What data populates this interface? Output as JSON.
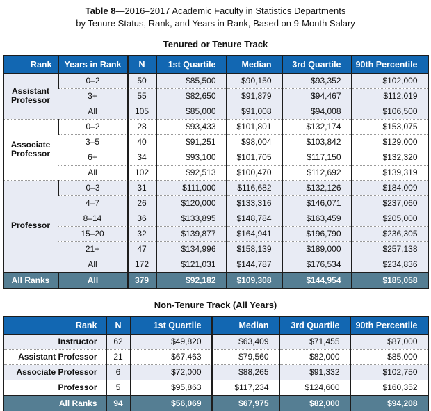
{
  "title": {
    "bold": "Table 8",
    "rest": "—2016–2017 Academic Faculty in Statistics Departments",
    "line2": "by Tenure Status, Rank, and Years in Rank, Based on 9-Month Salary"
  },
  "colors": {
    "header_bg": "#1267b2",
    "header_text": "#ffffff",
    "stripe_bg": "#e8ebf4",
    "total_bg": "#557e93",
    "total_text": "#ffffff",
    "border": "#1d1d1d",
    "dotted_separator": "#9a9a9a"
  },
  "tenured_table": {
    "title": "Tenured or Tenure Track",
    "headers": [
      "Rank",
      "Years in Rank",
      "N",
      "1st Quartile",
      "Median",
      "3rd Quartile",
      "90th Percentile"
    ],
    "groups": [
      {
        "rank": "Assistant Professor",
        "shaded": true,
        "rows": [
          {
            "years": "0–2",
            "n": "50",
            "q1": "$85,500",
            "median": "$90,150",
            "q3": "$93,352",
            "p90": "$102,000"
          },
          {
            "years": "3+",
            "n": "55",
            "q1": "$82,650",
            "median": "$91,879",
            "q3": "$94,467",
            "p90": "$112,019"
          },
          {
            "years": "All",
            "n": "105",
            "q1": "$85,000",
            "median": "$91,008",
            "q3": "$94,008",
            "p90": "$106,500"
          }
        ]
      },
      {
        "rank": "Associate Professor",
        "shaded": false,
        "rows": [
          {
            "years": "0–2",
            "n": "28",
            "q1": "$93,433",
            "median": "$101,801",
            "q3": "$132,174",
            "p90": "$153,075"
          },
          {
            "years": "3–5",
            "n": "40",
            "q1": "$91,251",
            "median": "$98,004",
            "q3": "$103,842",
            "p90": "$129,000"
          },
          {
            "years": "6+",
            "n": "34",
            "q1": "$93,100",
            "median": "$101,705",
            "q3": "$117,150",
            "p90": "$132,320"
          },
          {
            "years": "All",
            "n": "102",
            "q1": "$92,513",
            "median": "$100,470",
            "q3": "$112,692",
            "p90": "$139,319"
          }
        ]
      },
      {
        "rank": "Professor",
        "shaded": true,
        "rows": [
          {
            "years": "0–3",
            "n": "31",
            "q1": "$111,000",
            "median": "$116,682",
            "q3": "$132,126",
            "p90": "$184,009"
          },
          {
            "years": "4–7",
            "n": "26",
            "q1": "$120,000",
            "median": "$133,316",
            "q3": "$146,071",
            "p90": "$237,060"
          },
          {
            "years": "8–14",
            "n": "36",
            "q1": "$133,895",
            "median": "$148,784",
            "q3": "$163,459",
            "p90": "$205,000"
          },
          {
            "years": "15–20",
            "n": "32",
            "q1": "$139,877",
            "median": "$164,941",
            "q3": "$196,790",
            "p90": "$236,305"
          },
          {
            "years": "21+",
            "n": "47",
            "q1": "$134,996",
            "median": "$158,139",
            "q3": "$189,000",
            "p90": "$257,138"
          },
          {
            "years": "All",
            "n": "172",
            "q1": "$121,031",
            "median": "$144,787",
            "q3": "$176,534",
            "p90": "$234,836"
          }
        ]
      }
    ],
    "total_row": {
      "rank": "All Ranks",
      "years": "All",
      "n": "379",
      "q1": "$92,182",
      "median": "$109,308",
      "q3": "$144,954",
      "p90": "$185,058"
    }
  },
  "nontenure_table": {
    "title": "Non-Tenure Track (All Years)",
    "headers": [
      "Rank",
      "N",
      "1st Quartile",
      "Median",
      "3rd Quartile",
      "90th Percentile"
    ],
    "rows": [
      {
        "rank": "Instructor",
        "n": "62",
        "q1": "$49,820",
        "median": "$63,409",
        "q3": "$71,455",
        "p90": "$87,000",
        "shaded": true
      },
      {
        "rank": "Assistant Professor",
        "n": "21",
        "q1": "$67,463",
        "median": "$79,560",
        "q3": "$82,000",
        "p90": "$85,000",
        "shaded": false
      },
      {
        "rank": "Associate Professor",
        "n": "6",
        "q1": "$72,000",
        "median": "$88,265",
        "q3": "$91,332",
        "p90": "$102,750",
        "shaded": true
      },
      {
        "rank": "Professor",
        "n": "5",
        "q1": "$95,863",
        "median": "$117,234",
        "q3": "$124,600",
        "p90": "$160,352",
        "shaded": false
      }
    ],
    "total_row": {
      "rank": "All Ranks",
      "n": "94",
      "q1": "$56,069",
      "median": "$67,975",
      "q3": "$82,000",
      "p90": "$94,208"
    }
  }
}
